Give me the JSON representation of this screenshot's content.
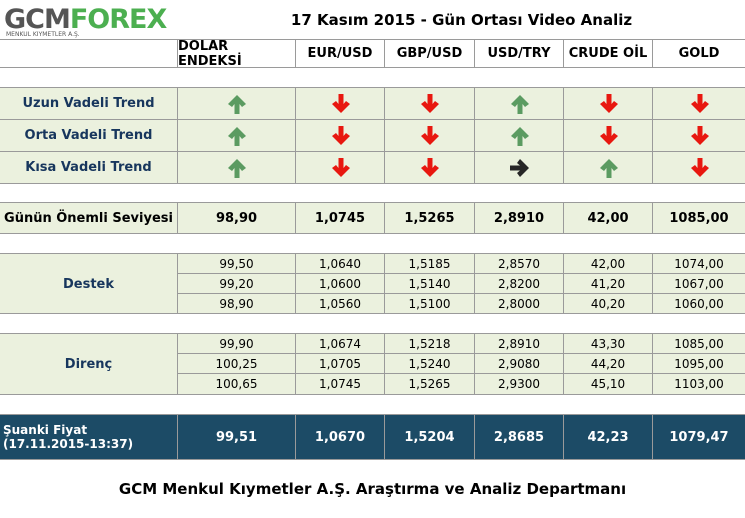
{
  "header": {
    "logo_left": "GCM",
    "logo_right": "FOREX",
    "logo_sub": "MENKUL KIYMETLER A.Ş.",
    "title": "17 Kasım 2015 - Gün Ortası Video Analiz"
  },
  "columns": [
    "DOLAR ENDEKSİ",
    "EUR/USD",
    "GBP/USD",
    "USD/TRY",
    "CRUDE OİL",
    "GOLD"
  ],
  "trend_rows": [
    "Uzun Vadeli Trend",
    "Orta Vadeli Trend",
    "Kısa Vadeli Trend"
  ],
  "key_level": {
    "label": "Günün Önemli Seviyesi",
    "values": [
      "98,90",
      "1,0745",
      "1,5265",
      "2,8910",
      "42,00",
      "1085,00"
    ]
  },
  "support": {
    "label": "Destek",
    "rows": [
      [
        "99,50",
        "1,0640",
        "1,5185",
        "2,8570",
        "42,00",
        "1074,00"
      ],
      [
        "99,20",
        "1,0600",
        "1,5140",
        "2,8200",
        "41,20",
        "1067,00"
      ],
      [
        "98,90",
        "1,0560",
        "1,5100",
        "2,8000",
        "40,20",
        "1060,00"
      ]
    ]
  },
  "resistance": {
    "label": "Direnç",
    "rows": [
      [
        "99,90",
        "1,0674",
        "1,5218",
        "2,8910",
        "43,30",
        "1085,00"
      ],
      [
        "100,25",
        "1,0705",
        "1,5240",
        "2,9080",
        "44,20",
        "1095,00"
      ],
      [
        "100,65",
        "1,0745",
        "1,5265",
        "2,9300",
        "45,10",
        "1103,00"
      ]
    ]
  },
  "current": {
    "label": "Şuanki Fiyat",
    "time": "(17.11.2015-13:37)",
    "values": [
      "99,51",
      "1,0670",
      "1,5204",
      "2,8685",
      "42,23",
      "1079,47"
    ]
  },
  "footer": "GCM Menkul Kıymetler A.Ş. Araştırma ve Analiz Departmanı"
}
